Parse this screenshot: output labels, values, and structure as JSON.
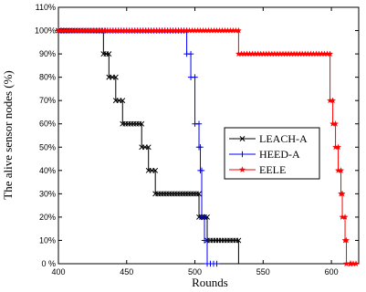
{
  "chart_data": {
    "type": "line",
    "title": "",
    "xlabel": "Rounds",
    "ylabel": "The alive sensor nodes (%)",
    "xlim": [
      400,
      620
    ],
    "ylim": [
      0,
      110
    ],
    "x_ticks": [
      "400",
      "450",
      "500",
      "550",
      "600"
    ],
    "x_tick_values": [
      400,
      450,
      500,
      550,
      600
    ],
    "y_ticks": [
      "0 %",
      "10%",
      "20%",
      "30%",
      "40%",
      "50%",
      "60%",
      "70%",
      "80%",
      "90%",
      "100%",
      "110%"
    ],
    "y_tick_values": [
      0,
      10,
      20,
      30,
      40,
      50,
      60,
      70,
      80,
      90,
      100,
      110
    ],
    "grid": false,
    "legend_position": "right",
    "series": [
      {
        "name": "LEACH-A",
        "color": "#000000",
        "marker": "x",
        "x": [
          400,
          433,
          433,
          437,
          437,
          442,
          442,
          447,
          447,
          461,
          461,
          466,
          466,
          471,
          471,
          503,
          503,
          509,
          509,
          532,
          532
        ],
        "y": [
          100,
          100,
          90,
          90,
          80,
          80,
          70,
          70,
          60,
          60,
          50,
          50,
          40,
          40,
          30,
          30,
          20,
          20,
          10,
          10,
          0
        ]
      },
      {
        "name": "HEED-A",
        "color": "#0000ff",
        "marker": "+",
        "x": [
          400,
          494,
          494,
          497,
          497,
          500,
          500,
          503,
          503,
          504,
          504,
          505,
          505,
          507,
          507,
          509,
          509,
          516
        ],
        "y": [
          100,
          100,
          90,
          90,
          80,
          80,
          60,
          60,
          50,
          50,
          40,
          40,
          20,
          20,
          10,
          10,
          0,
          0
        ]
      },
      {
        "name": "EELE",
        "color": "#ff0000",
        "marker": "*",
        "x": [
          400,
          532,
          532,
          599,
          599,
          601,
          601,
          603,
          603,
          605,
          605,
          607,
          607,
          608,
          608,
          610,
          610,
          611,
          611,
          614,
          614,
          618
        ],
        "y": [
          100,
          100,
          90,
          90,
          70,
          70,
          60,
          60,
          50,
          50,
          40,
          40,
          30,
          30,
          20,
          20,
          10,
          10,
          0,
          0,
          0,
          0
        ]
      }
    ]
  }
}
